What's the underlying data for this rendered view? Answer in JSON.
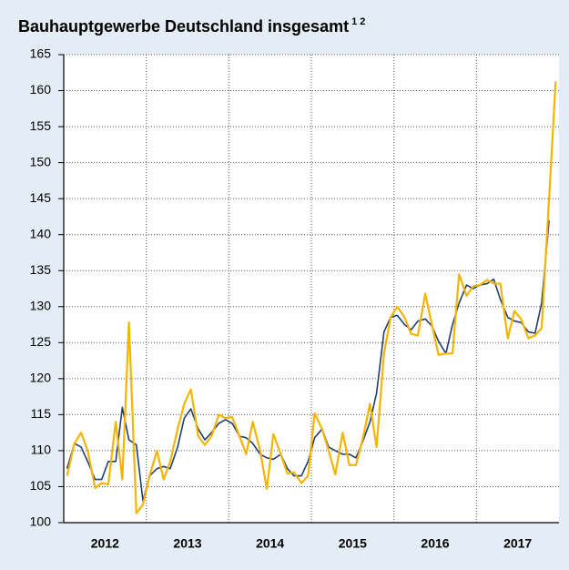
{
  "chart_data": {
    "type": "line",
    "title": "Bauhauptgewerbe Deutschland insgesamt",
    "title_note": "1 2",
    "x": [
      2012.04,
      2012.13,
      2012.21,
      2012.29,
      2012.38,
      2012.46,
      2012.54,
      2012.63,
      2012.71,
      2012.79,
      2012.88,
      2012.96,
      2013.04,
      2013.13,
      2013.21,
      2013.29,
      2013.38,
      2013.46,
      2013.54,
      2013.63,
      2013.71,
      2013.79,
      2013.88,
      2013.96,
      2014.04,
      2014.13,
      2014.21,
      2014.29,
      2014.38,
      2014.46,
      2014.54,
      2014.63,
      2014.71,
      2014.79,
      2014.88,
      2014.96,
      2015.04,
      2015.13,
      2015.21,
      2015.29,
      2015.38,
      2015.46,
      2015.54,
      2015.63,
      2015.71,
      2015.79,
      2015.88,
      2015.96,
      2016.04,
      2016.13,
      2016.21,
      2016.29,
      2016.38,
      2016.46,
      2016.54,
      2016.63,
      2016.71,
      2016.79,
      2016.88,
      2016.96,
      2017.04,
      2017.13,
      2017.21,
      2017.29,
      2017.38,
      2017.46,
      2017.54,
      2017.63,
      2017.71,
      2017.79,
      2017.88,
      2017.96
    ],
    "series": [
      {
        "color": "#1f3f73",
        "values": [
          107.5,
          111,
          110.5,
          108.5,
          106,
          106,
          108.5,
          108.5,
          116,
          111.5,
          110.8,
          103,
          106.5,
          107.5,
          107.8,
          107.5,
          110.5,
          114.5,
          115.8,
          113,
          111.5,
          112.5,
          113.8,
          114.3,
          113.8,
          112,
          111.8,
          111,
          109.5,
          109,
          108.8,
          109.5,
          107.5,
          106.5,
          106.5,
          108.5,
          111.8,
          113,
          110.5,
          110,
          109.5,
          109.5,
          109,
          111.5,
          114,
          118,
          126.5,
          128.5,
          128.8,
          127.5,
          126.8,
          128,
          128.3,
          127.3,
          125.2,
          123.5,
          127.5,
          130.5,
          133,
          132.5,
          133,
          133.2,
          133.8,
          131,
          128.5,
          128,
          127.8,
          126.5,
          126.3,
          130.5,
          142,
          null
        ]
      },
      {
        "color": "#f5b400",
        "values": [
          106.5,
          111,
          112.5,
          110,
          104.8,
          105.5,
          105.3,
          114,
          106,
          127.8,
          101.3,
          102.5,
          106.5,
          110,
          106,
          108.5,
          113,
          116.5,
          118.5,
          112,
          110.8,
          112,
          115,
          114.5,
          114.7,
          112,
          109.5,
          114,
          110,
          104.7,
          112.3,
          109.5,
          106.8,
          107,
          105.5,
          106.5,
          115.2,
          113,
          110,
          106.7,
          112.5,
          108,
          108,
          112,
          116.5,
          110.5,
          123.5,
          128.5,
          130,
          128.5,
          126.2,
          126,
          131.8,
          127.5,
          123.3,
          123.5,
          123.5,
          134.5,
          131.5,
          132.8,
          133,
          133.7,
          133.2,
          133.2,
          125.6,
          129.4,
          128.3,
          125.6,
          126,
          127,
          145,
          161.3
        ]
      }
    ],
    "xlim": [
      2012,
      2018
    ],
    "xticks": [
      {
        "value": 2012.5,
        "label": "2012"
      },
      {
        "value": 2013.5,
        "label": "2013"
      },
      {
        "value": 2014.5,
        "label": "2014"
      },
      {
        "value": 2015.5,
        "label": "2015"
      },
      {
        "value": 2016.5,
        "label": "2016"
      },
      {
        "value": 2017.5,
        "label": "2017"
      }
    ],
    "ylim": [
      100,
      165
    ],
    "yticks": [
      100,
      105,
      110,
      115,
      120,
      125,
      130,
      135,
      140,
      145,
      150,
      155,
      160,
      165
    ],
    "grid": true
  }
}
